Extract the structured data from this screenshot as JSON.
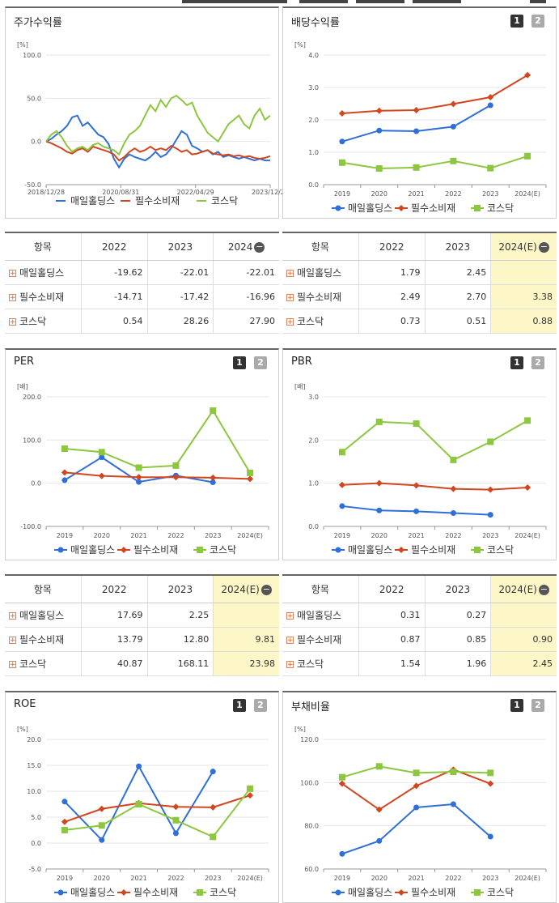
{
  "colors": {
    "series1": "#2f6fd8",
    "series2": "#d2451e",
    "series3": "#8dc63f"
  },
  "series_names": [
    "매일홀딩스",
    "필수소비재",
    "코스닥"
  ],
  "page_buttons": [
    "1",
    "2"
  ],
  "panels": {
    "stock": {
      "title": "주가수익률",
      "unit": "[%]",
      "chart_data": {
        "type": "line",
        "ylabel": "[%]",
        "ylim": [
          -50,
          100
        ],
        "yticks": [
          "100.0",
          "50.0",
          "0.0",
          "-50.0"
        ],
        "xticks": [
          "2018/12/28",
          "2020/08/31",
          "2022/04/29",
          "2023/12/28"
        ],
        "series": [
          {
            "name": "매일홀딩스",
            "values": [
              0,
              3,
              8,
              12,
              18,
              28,
              30,
              18,
              22,
              15,
              8,
              5,
              -3,
              -20,
              -30,
              -20,
              -15,
              -18,
              -20,
              -22,
              -18,
              -12,
              -18,
              -15,
              -8,
              2,
              12,
              8,
              -5,
              -8,
              -12,
              -10,
              -15,
              -12,
              -18,
              -16,
              -18,
              -20,
              -18,
              -20,
              -22,
              -20,
              -22,
              -22
            ]
          },
          {
            "name": "필수소비재",
            "values": [
              0,
              -2,
              -5,
              -8,
              -12,
              -14,
              -10,
              -8,
              -12,
              -6,
              -8,
              -10,
              -12,
              -15,
              -22,
              -18,
              -12,
              -8,
              -12,
              -10,
              -6,
              -10,
              -8,
              -10,
              -5,
              -8,
              -12,
              -10,
              -15,
              -14,
              -12,
              -10,
              -14,
              -15,
              -16,
              -15,
              -17,
              -16,
              -18,
              -17,
              -19,
              -20,
              -19,
              -17
            ]
          },
          {
            "name": "코스닥",
            "values": [
              0,
              8,
              12,
              5,
              -5,
              -12,
              -8,
              -6,
              -10,
              -4,
              -2,
              -6,
              -8,
              -10,
              -15,
              -2,
              8,
              12,
              18,
              30,
              42,
              35,
              48,
              40,
              50,
              53,
              48,
              42,
              45,
              30,
              20,
              10,
              5,
              0,
              10,
              20,
              25,
              30,
              20,
              15,
              30,
              38,
              25,
              30
            ]
          }
        ]
      },
      "table": {
        "headers": [
          "항목",
          "2022",
          "2023",
          "2024"
        ],
        "rows": [
          {
            "name": "매일홀딩스",
            "values": [
              "-19.62",
              "-22.01",
              "-22.01"
            ]
          },
          {
            "name": "필수소비재",
            "values": [
              "-14.71",
              "-17.42",
              "-16.96"
            ]
          },
          {
            "name": "코스닥",
            "values": [
              "0.54",
              "28.26",
              "27.90"
            ]
          }
        ]
      }
    },
    "dividend": {
      "title": "배당수익률",
      "unit": "[%]",
      "chart_data": {
        "type": "line",
        "categories": [
          "2019",
          "2020",
          "2021",
          "2022",
          "2023",
          "2024(E)"
        ],
        "ylim": [
          0,
          4
        ],
        "yticks": [
          "4.0",
          "3.0",
          "2.0",
          "1.0",
          "0.0"
        ],
        "series": [
          {
            "name": "매일홀딩스",
            "values": [
              1.33,
              1.67,
              1.65,
              1.79,
              2.45,
              null
            ]
          },
          {
            "name": "필수소비재",
            "values": [
              2.2,
              2.28,
              2.3,
              2.49,
              2.7,
              3.38
            ]
          },
          {
            "name": "코스닥",
            "values": [
              0.68,
              0.5,
              0.53,
              0.73,
              0.51,
              0.88
            ]
          }
        ]
      },
      "table": {
        "headers": [
          "항목",
          "2022",
          "2023",
          "2024(E)"
        ],
        "rows": [
          {
            "name": "매일홀딩스",
            "values": [
              "1.79",
              "2.45",
              ""
            ]
          },
          {
            "name": "필수소비재",
            "values": [
              "2.49",
              "2.70",
              "3.38"
            ]
          },
          {
            "name": "코스닥",
            "values": [
              "0.73",
              "0.51",
              "0.88"
            ]
          }
        ]
      }
    },
    "per": {
      "title": "PER",
      "unit": "[배]",
      "chart_data": {
        "type": "line",
        "categories": [
          "2019",
          "2020",
          "2021",
          "2022",
          "2023",
          "2024(E)"
        ],
        "ylim": [
          -100,
          200
        ],
        "yticks": [
          "200.0",
          "100.0",
          "0.0",
          "-100.0"
        ],
        "series": [
          {
            "name": "매일홀딩스",
            "values": [
              7,
              60,
              3,
              17.69,
              2.25,
              null
            ]
          },
          {
            "name": "필수소비재",
            "values": [
              25,
              17,
              14,
              13.79,
              12.8,
              9.81
            ]
          },
          {
            "name": "코스닥",
            "values": [
              80,
              72,
              36,
              40.87,
              168.11,
              23.98
            ]
          }
        ]
      },
      "table": {
        "headers": [
          "항목",
          "2022",
          "2023",
          "2024(E)"
        ],
        "rows": [
          {
            "name": "매일홀딩스",
            "values": [
              "17.69",
              "2.25",
              ""
            ]
          },
          {
            "name": "필수소비재",
            "values": [
              "13.79",
              "12.80",
              "9.81"
            ]
          },
          {
            "name": "코스닥",
            "values": [
              "40.87",
              "168.11",
              "23.98"
            ]
          }
        ]
      }
    },
    "pbr": {
      "title": "PBR",
      "unit": "[배]",
      "chart_data": {
        "type": "line",
        "categories": [
          "2019",
          "2020",
          "2021",
          "2022",
          "2023",
          "2024(E)"
        ],
        "ylim": [
          0,
          3
        ],
        "yticks": [
          "3.0",
          "2.0",
          "1.0",
          "0.0"
        ],
        "series": [
          {
            "name": "매일홀딩스",
            "values": [
              0.47,
              0.37,
              0.35,
              0.31,
              0.27,
              null
            ]
          },
          {
            "name": "필수소비재",
            "values": [
              0.96,
              1.0,
              0.95,
              0.87,
              0.85,
              0.9
            ]
          },
          {
            "name": "코스닥",
            "values": [
              1.72,
              2.42,
              2.38,
              1.54,
              1.96,
              2.45
            ]
          }
        ]
      },
      "table": {
        "headers": [
          "항목",
          "2022",
          "2023",
          "2024(E)"
        ],
        "rows": [
          {
            "name": "매일홀딩스",
            "values": [
              "0.31",
              "0.27",
              ""
            ]
          },
          {
            "name": "필수소비재",
            "values": [
              "0.87",
              "0.85",
              "0.90"
            ]
          },
          {
            "name": "코스닥",
            "values": [
              "1.54",
              "1.96",
              "2.45"
            ]
          }
        ]
      }
    },
    "roe": {
      "title": "ROE",
      "unit": "[%]",
      "chart_data": {
        "type": "line",
        "categories": [
          "2019",
          "2020",
          "2021",
          "2022",
          "2023",
          "2024(E)"
        ],
        "ylim": [
          -5,
          20
        ],
        "yticks": [
          "20.0",
          "15.0",
          "10.0",
          "5.0",
          "0.0",
          "-5.0"
        ],
        "series": [
          {
            "name": "매일홀딩스",
            "values": [
              8.0,
              0.6,
              14.8,
              1.9,
              13.8,
              null
            ]
          },
          {
            "name": "필수소비재",
            "values": [
              4.1,
              6.6,
              7.7,
              7.0,
              6.9,
              9.2
            ]
          },
          {
            "name": "코스닥",
            "values": [
              2.5,
              3.4,
              7.5,
              4.4,
              1.2,
              10.5
            ]
          }
        ]
      }
    },
    "debt": {
      "title": "부채비율",
      "unit": "[%]",
      "chart_data": {
        "type": "line",
        "categories": [
          "2019",
          "2020",
          "2021",
          "2022",
          "2023",
          "2024(E)"
        ],
        "ylim": [
          60,
          120
        ],
        "yticks": [
          "120.0",
          "100.0",
          "80.0",
          "60.0"
        ],
        "series": [
          {
            "name": "매일홀딩스",
            "values": [
              67,
              73,
              88.5,
              90,
              75,
              null
            ]
          },
          {
            "name": "필수소비재",
            "values": [
              99.5,
              87.5,
              98.5,
              106,
              99.5,
              null
            ]
          },
          {
            "name": "코스닥",
            "values": [
              102.5,
              107.5,
              104.5,
              105,
              104.5,
              null
            ]
          }
        ]
      }
    }
  }
}
